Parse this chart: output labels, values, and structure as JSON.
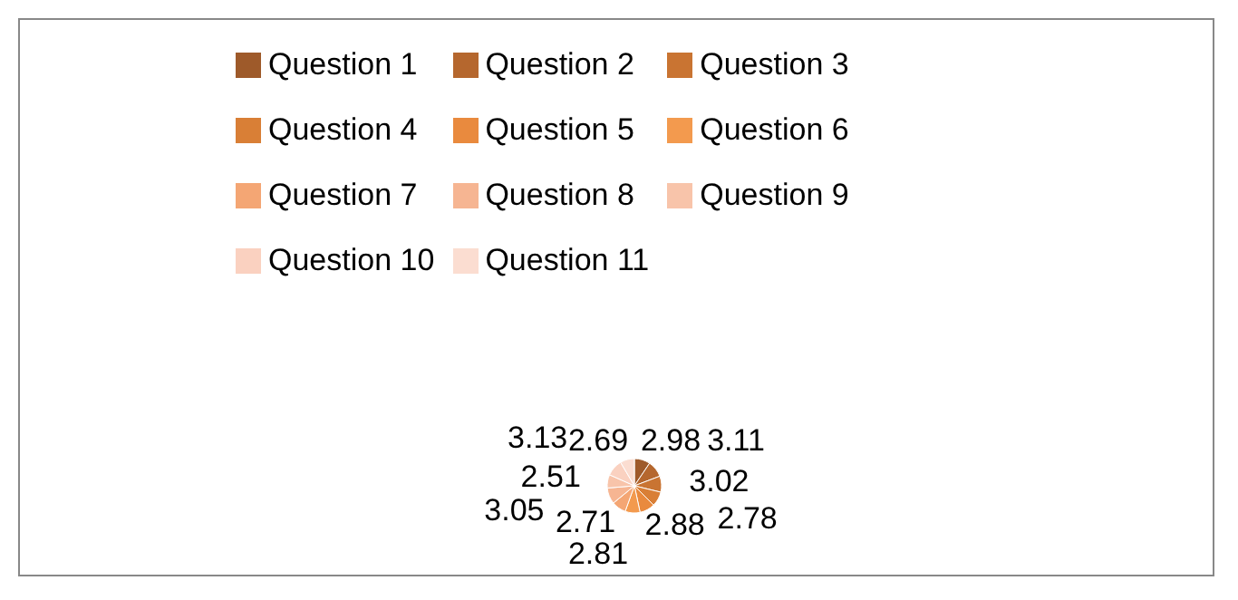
{
  "chart_data": {
    "type": "pie",
    "categories": [
      "Question  1",
      "Question  2",
      "Question  3",
      "Question  4",
      "Question  5",
      "Question  6",
      "Question  7",
      "Question  8",
      "Question  9",
      "Question  10",
      "Question  11"
    ],
    "values": [
      2.98,
      3.11,
      3.02,
      2.78,
      2.88,
      2.81,
      2.71,
      3.05,
      2.51,
      3.13,
      2.69
    ],
    "colors": [
      "#9e5a2a",
      "#b5672e",
      "#c97432",
      "#d97f36",
      "#e98a3e",
      "#f39a4e",
      "#f4a674",
      "#f6b592",
      "#f8c4aa",
      "#fad1c0",
      "#fbddd1"
    ],
    "data_labels": true,
    "legend": "top"
  }
}
